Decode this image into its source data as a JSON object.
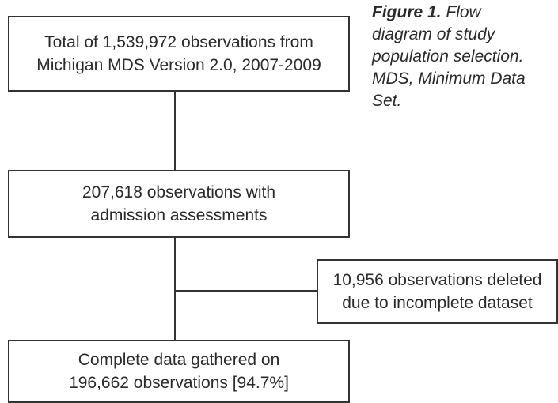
{
  "nodes": [
    {
      "lines": [
        "Total of 1,539,972 observations from",
        "Michigan MDS Version 2.0, 2007-2009"
      ]
    },
    {
      "lines": [
        "207,618 observations with",
        "admission assessments"
      ]
    },
    {
      "lines": [
        "10,956 observations deleted",
        "due to incomplete dataset"
      ]
    },
    {
      "lines": [
        "Complete data gathered on",
        "196,662 observations [94.7%]"
      ]
    }
  ],
  "caption": {
    "label": "Figure 1.",
    "text": "Flow diagram of study population selection. MDS, Minimum Data Set."
  }
}
